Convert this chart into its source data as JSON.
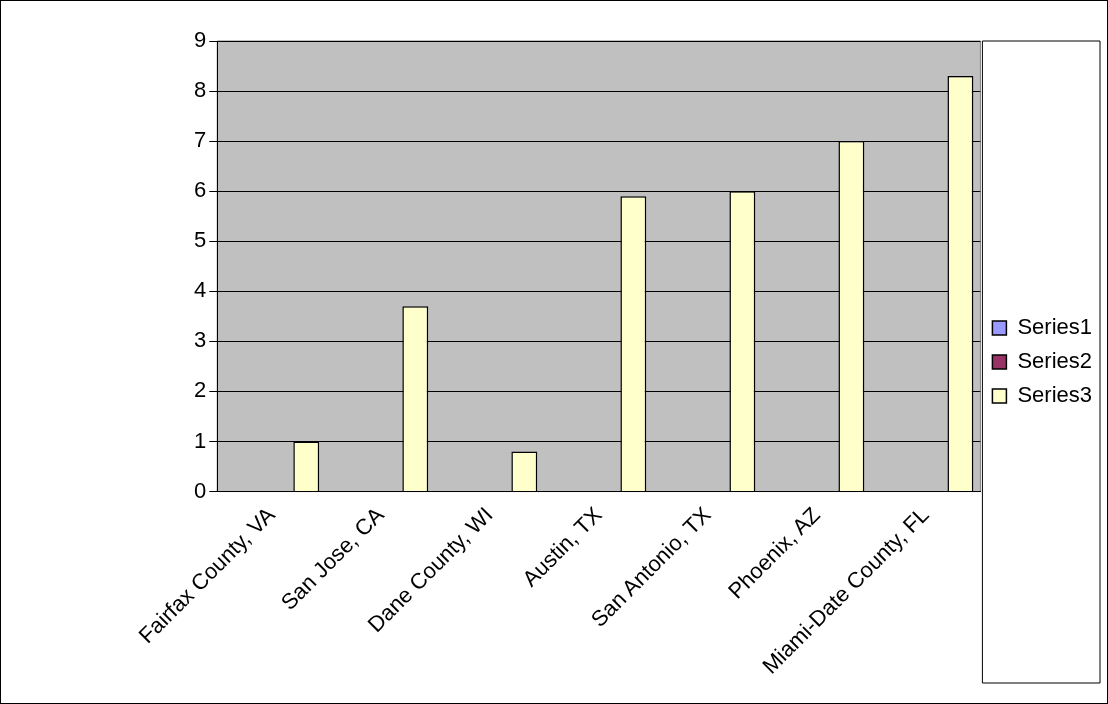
{
  "chart_data": {
    "type": "bar",
    "categories": [
      "Fairfax County, VA",
      "San Jose, CA",
      "Dane County, WI",
      "Austin, TX",
      "San Antonio, TX",
      "Phoenix, AZ",
      "Miami-Date County, FL"
    ],
    "series": [
      {
        "name": "Series1",
        "color": "#9999ff",
        "values": [
          null,
          null,
          null,
          null,
          null,
          null,
          null
        ]
      },
      {
        "name": "Series2",
        "color": "#993366",
        "values": [
          null,
          null,
          null,
          null,
          null,
          null,
          null
        ]
      },
      {
        "name": "Series3",
        "color": "#ffffcc",
        "values": [
          1.0,
          3.7,
          0.8,
          5.9,
          6.0,
          7.0,
          8.3
        ]
      }
    ],
    "ylim": [
      0,
      9
    ],
    "yticks": [
      0,
      1,
      2,
      3,
      4,
      5,
      6,
      7,
      8,
      9
    ],
    "grid": "y",
    "legend": "right"
  }
}
